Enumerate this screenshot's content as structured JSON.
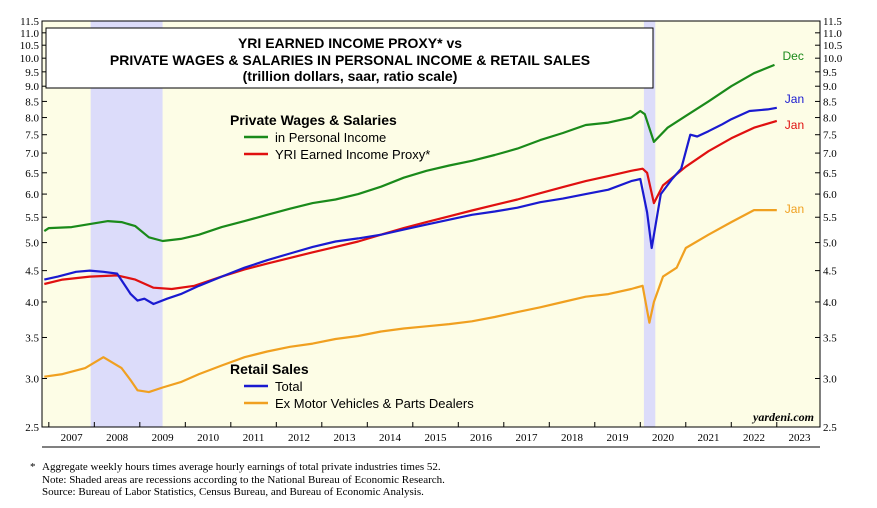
{
  "chart_data": {
    "type": "line",
    "title_lines": [
      "YRI EARNED INCOME PROXY* vs",
      "PRIVATE WAGES & SALARIES IN PERSONAL INCOME & RETAIL SALES",
      "(trillion dollars, saar, ratio scale)"
    ],
    "y_scale": "log",
    "ylim": [
      2.5,
      11.5
    ],
    "xlim": [
      2006.85,
      2023.95
    ],
    "yticks": [
      2.5,
      3.0,
      3.5,
      4.0,
      4.5,
      5.0,
      5.5,
      6.0,
      6.5,
      7.0,
      7.5,
      8.0,
      8.5,
      9.0,
      9.5,
      10.0,
      10.5,
      11.0,
      11.5
    ],
    "ytick_labels": [
      "2.5",
      "3.0",
      "3.5",
      "4.0",
      "4.5",
      "5.0",
      "5.5",
      "6.0",
      "6.5",
      "7.0",
      "7.5",
      "8.0",
      "8.5",
      "9.0",
      "9.5",
      "10.0",
      "10.5",
      "11.0",
      "11.5"
    ],
    "x_tick_labels": [
      "2007",
      "2008",
      "2009",
      "2010",
      "2011",
      "2012",
      "2013",
      "2014",
      "2015",
      "2016",
      "2017",
      "2018",
      "2019",
      "2020",
      "2021",
      "2022",
      "2023"
    ],
    "recessions": [
      [
        2007.92,
        2009.5
      ],
      [
        2020.08,
        2020.33
      ]
    ],
    "legend_groups": [
      {
        "heading": "Private Wages & Salaries",
        "entries": [
          {
            "series": "wages",
            "label": "in Personal Income"
          },
          {
            "series": "proxy",
            "label": "YRI Earned Income Proxy*"
          }
        ]
      },
      {
        "heading": "Retail Sales",
        "entries": [
          {
            "series": "retail_total",
            "label": "Total"
          },
          {
            "series": "retail_ex",
            "label": "Ex Motor Vehicles & Parts Dealers"
          }
        ]
      }
    ],
    "series": [
      {
        "id": "wages",
        "name": "Private Wages & Salaries in Personal Income",
        "color": "#1a8a1a",
        "end_label": "Dec",
        "x": [
          2006.9,
          2007.0,
          2007.5,
          2007.9,
          2008.3,
          2008.6,
          2008.9,
          2009.2,
          2009.5,
          2009.9,
          2010.3,
          2010.8,
          2011.3,
          2011.8,
          2012.3,
          2012.8,
          2013.3,
          2013.8,
          2014.3,
          2014.8,
          2015.3,
          2015.8,
          2016.3,
          2016.8,
          2017.3,
          2017.8,
          2018.3,
          2018.8,
          2019.3,
          2019.8,
          2020.0,
          2020.1,
          2020.3,
          2020.6,
          2021.0,
          2021.5,
          2022.0,
          2022.5,
          2022.95
        ],
        "values": [
          5.22,
          5.28,
          5.3,
          5.36,
          5.42,
          5.4,
          5.32,
          5.1,
          5.03,
          5.07,
          5.15,
          5.3,
          5.42,
          5.55,
          5.68,
          5.8,
          5.88,
          6.0,
          6.17,
          6.38,
          6.55,
          6.68,
          6.8,
          6.95,
          7.12,
          7.35,
          7.55,
          7.78,
          7.85,
          8.0,
          8.2,
          8.1,
          7.3,
          7.7,
          8.05,
          8.5,
          9.0,
          9.45,
          9.75
        ]
      },
      {
        "id": "proxy",
        "name": "YRI Earned Income Proxy*",
        "color": "#e01010",
        "end_label": "Jan",
        "x": [
          2006.9,
          2007.3,
          2007.9,
          2008.5,
          2008.9,
          2009.3,
          2009.7,
          2010.2,
          2010.8,
          2011.3,
          2011.8,
          2012.3,
          2012.8,
          2013.3,
          2013.8,
          2014.3,
          2014.8,
          2015.3,
          2015.8,
          2016.3,
          2016.8,
          2017.3,
          2017.8,
          2018.3,
          2018.8,
          2019.3,
          2019.8,
          2020.05,
          2020.15,
          2020.3,
          2020.5,
          2021.0,
          2021.5,
          2022.0,
          2022.5,
          2023.0
        ],
        "values": [
          4.28,
          4.35,
          4.4,
          4.42,
          4.35,
          4.22,
          4.2,
          4.25,
          4.4,
          4.52,
          4.62,
          4.72,
          4.82,
          4.92,
          5.02,
          5.15,
          5.28,
          5.4,
          5.52,
          5.64,
          5.76,
          5.88,
          6.02,
          6.16,
          6.3,
          6.42,
          6.55,
          6.6,
          6.5,
          5.8,
          6.2,
          6.65,
          7.05,
          7.4,
          7.7,
          7.9
        ]
      },
      {
        "id": "retail_total",
        "name": "Retail Sales Total",
        "color": "#1a1ad0",
        "end_label": "Jan",
        "x": [
          2006.9,
          2007.2,
          2007.6,
          2007.9,
          2008.2,
          2008.5,
          2008.8,
          2008.95,
          2009.1,
          2009.3,
          2009.6,
          2009.9,
          2010.3,
          2010.8,
          2011.3,
          2011.8,
          2012.3,
          2012.8,
          2013.3,
          2013.8,
          2014.3,
          2014.8,
          2015.3,
          2015.8,
          2016.3,
          2016.8,
          2017.3,
          2017.8,
          2018.3,
          2018.8,
          2019.3,
          2019.8,
          2020.0,
          2020.15,
          2020.25,
          2020.45,
          2020.7,
          2020.9,
          2021.1,
          2021.25,
          2021.5,
          2021.8,
          2022.0,
          2022.4,
          2022.8,
          2023.0
        ],
        "values": [
          4.35,
          4.4,
          4.48,
          4.5,
          4.48,
          4.45,
          4.12,
          4.02,
          4.05,
          3.97,
          4.05,
          4.12,
          4.25,
          4.4,
          4.55,
          4.68,
          4.8,
          4.92,
          5.02,
          5.08,
          5.15,
          5.25,
          5.35,
          5.45,
          5.55,
          5.62,
          5.7,
          5.82,
          5.9,
          6.0,
          6.1,
          6.3,
          6.35,
          5.6,
          4.9,
          6.0,
          6.35,
          6.6,
          7.5,
          7.45,
          7.6,
          7.8,
          7.95,
          8.2,
          8.25,
          8.3
        ]
      },
      {
        "id": "retail_ex",
        "name": "Retail Sales Ex Motor Vehicles & Parts Dealers",
        "color": "#f0a020",
        "end_label": "Jan",
        "x": [
          2006.9,
          2007.3,
          2007.8,
          2008.2,
          2008.6,
          2008.8,
          2008.95,
          2009.2,
          2009.5,
          2009.9,
          2010.3,
          2010.8,
          2011.3,
          2011.8,
          2012.3,
          2012.8,
          2013.3,
          2013.8,
          2014.3,
          2014.8,
          2015.3,
          2015.8,
          2016.3,
          2016.8,
          2017.3,
          2017.8,
          2018.3,
          2018.8,
          2019.3,
          2019.8,
          2020.05,
          2020.2,
          2020.3,
          2020.5,
          2020.8,
          2021.0,
          2021.5,
          2022.0,
          2022.5,
          2023.0
        ],
        "values": [
          3.02,
          3.05,
          3.12,
          3.25,
          3.12,
          2.98,
          2.87,
          2.85,
          2.9,
          2.96,
          3.05,
          3.15,
          3.25,
          3.32,
          3.38,
          3.42,
          3.48,
          3.52,
          3.58,
          3.62,
          3.65,
          3.68,
          3.72,
          3.78,
          3.85,
          3.92,
          4.0,
          4.08,
          4.12,
          4.2,
          4.25,
          3.7,
          4.0,
          4.4,
          4.55,
          4.9,
          5.15,
          5.4,
          5.65,
          5.65
        ]
      }
    ]
  },
  "source_mark": "yardeni.com",
  "footnotes": {
    "star": "*",
    "line1": "Aggregate weekly hours times average hourly earnings of total private industries times 52.",
    "line2": "Note: Shaded areas are recessions according to the National Bureau of Economic Research.",
    "line3": "Source: Bureau of Labor Statistics, Census Bureau, and Bureau of Economic Analysis."
  }
}
